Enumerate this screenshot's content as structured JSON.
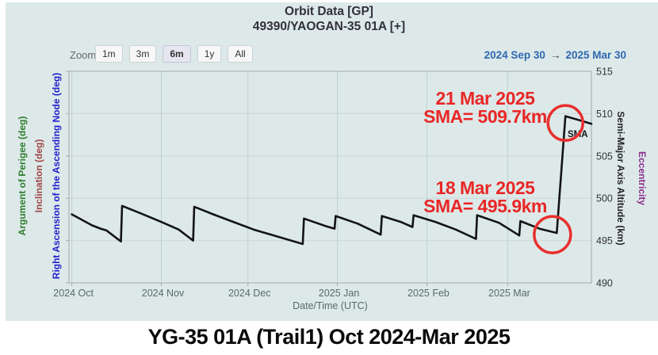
{
  "header": {
    "title": "Orbit Data [GP]",
    "subtitle": "49390/YAOGAN-35 01A [+]"
  },
  "toolbar": {
    "zoom_label": "Zoom",
    "buttons": [
      {
        "label": "1m",
        "selected": false
      },
      {
        "label": "3m",
        "selected": false
      },
      {
        "label": "6m",
        "selected": true
      },
      {
        "label": "1y",
        "selected": false
      },
      {
        "label": "All",
        "selected": false
      }
    ],
    "range_from": "2024 Sep 30",
    "range_arrow": "→",
    "range_to": "2025 Mar 30"
  },
  "axes": {
    "left_titles": [
      {
        "text": "Argument of Perigee (deg)",
        "color": "#2e7d2e"
      },
      {
        "text": "Inclination (deg)",
        "color": "#a04545"
      },
      {
        "text": "Right Ascension of the Ascending Node (deg)",
        "color": "#2222cc"
      }
    ],
    "right_titles": [
      {
        "text": "Semi-Major Axis Altitude (km)",
        "color": "#222222"
      },
      {
        "text": "Eccentricity",
        "color": "#8a2c8a"
      }
    ]
  },
  "chart_data": {
    "type": "line",
    "title": "Orbit Data [GP] — 49390/YAOGAN-35 01A",
    "xlabel": "Date/Time (UTC)",
    "grid": true,
    "x_axis": {
      "start": "2024 Sep 30",
      "end": "2025 Mar 30",
      "day_span": 181,
      "ticks": [
        {
          "day": 1,
          "label": "2024 Oct"
        },
        {
          "day": 32,
          "label": "2024 Nov"
        },
        {
          "day": 62,
          "label": "2024 Dec"
        },
        {
          "day": 93,
          "label": "2025 Jan"
        },
        {
          "day": 124,
          "label": "2025 Feb"
        },
        {
          "day": 152,
          "label": "2025 Mar"
        }
      ]
    },
    "y_axis": {
      "min": 490,
      "max": 515,
      "ticks": [
        515,
        510,
        505,
        500,
        495,
        490
      ],
      "unit": "km"
    },
    "series": [
      {
        "name": "SMA",
        "color": "#141414",
        "points_format": "[days_since_2024_09_30, sma_altitude_km]",
        "points": [
          [
            1,
            498.1
          ],
          [
            8,
            496.8
          ],
          [
            11,
            496.4
          ],
          [
            13,
            496.2
          ],
          [
            18,
            494.9
          ],
          [
            18.4,
            499.1
          ],
          [
            25,
            498.2
          ],
          [
            32,
            497.2
          ],
          [
            38,
            496.3
          ],
          [
            43,
            495.0
          ],
          [
            43.4,
            499.0
          ],
          [
            50,
            498.1
          ],
          [
            57,
            497.2
          ],
          [
            64,
            496.3
          ],
          [
            72,
            495.5
          ],
          [
            81,
            494.6
          ],
          [
            81.4,
            497.6
          ],
          [
            89,
            496.7
          ],
          [
            92,
            496.4
          ],
          [
            92.4,
            497.9
          ],
          [
            100,
            497.0
          ],
          [
            108,
            495.7
          ],
          [
            108.4,
            497.9
          ],
          [
            115,
            497.2
          ],
          [
            119,
            496.6
          ],
          [
            119.4,
            498.0
          ],
          [
            127,
            497.2
          ],
          [
            134,
            496.3
          ],
          [
            141,
            495.2
          ],
          [
            141.4,
            498.0
          ],
          [
            149,
            497.1
          ],
          [
            156,
            495.6
          ],
          [
            156.4,
            497.3
          ],
          [
            163,
            496.4
          ],
          [
            169,
            495.9
          ],
          [
            172,
            509.7
          ],
          [
            177,
            509.2
          ],
          [
            181,
            508.8
          ]
        ]
      }
    ],
    "annotations": [
      {
        "line1": "21 Mar 2025",
        "line2": "SMA= 509.7km",
        "color": "#e92727"
      },
      {
        "line1": "18 Mar 2025",
        "line2": "SMA= 495.9km",
        "color": "#e92727"
      }
    ],
    "highlight_color": "#e8302f",
    "circles": [
      {
        "day": 172,
        "km": 508.9,
        "r": 22
      },
      {
        "day": 167.5,
        "km": 495.7,
        "r": 23
      }
    ]
  },
  "caption": {
    "text": "YG-35 01A (Trail1) Oct 2024-Mar 2025"
  }
}
